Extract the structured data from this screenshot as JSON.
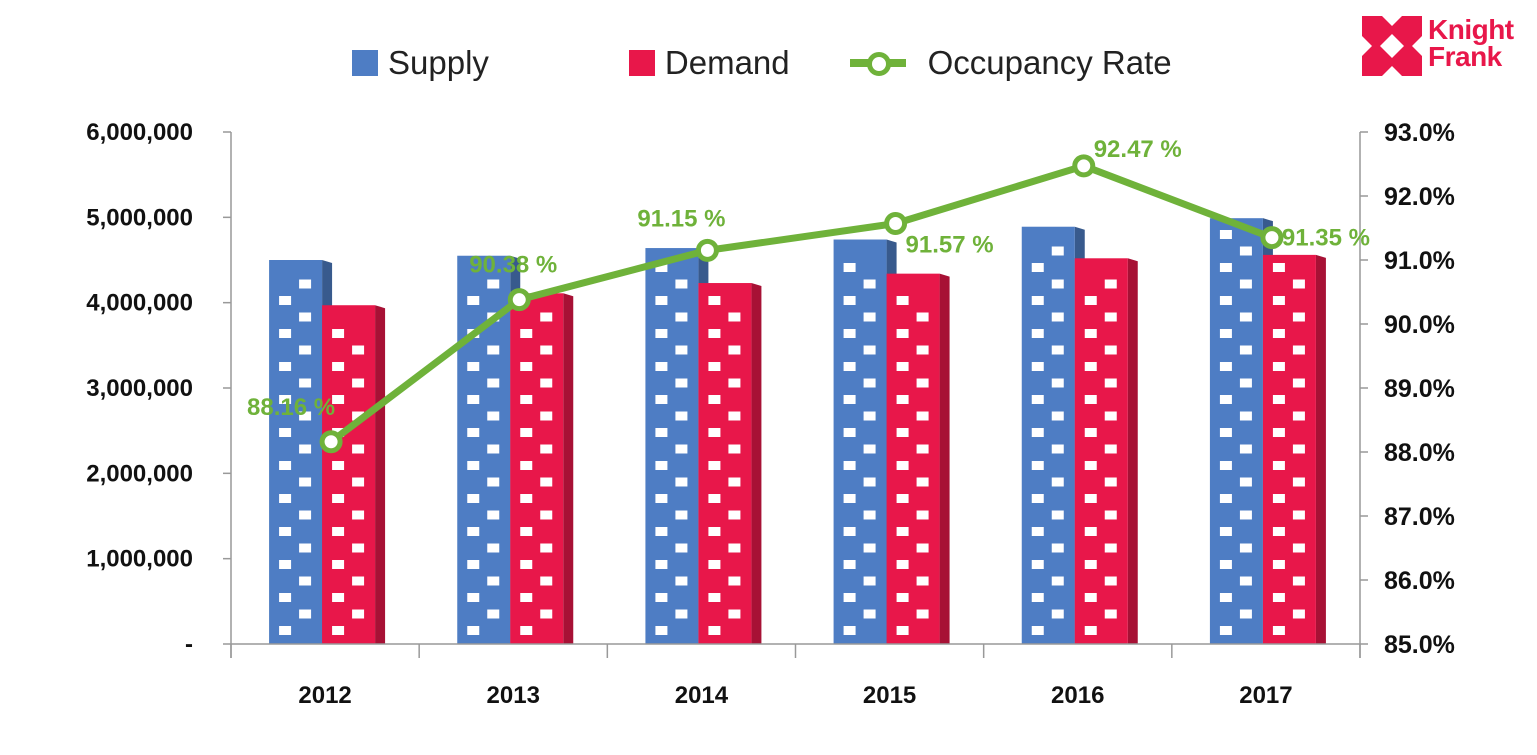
{
  "brand": {
    "line1": "Knight",
    "line2": "Frank",
    "color": "#e8174a"
  },
  "legend": {
    "supply": "Supply",
    "demand": "Demand",
    "occupancy": "Occupancy Rate"
  },
  "chart_data": {
    "type": "bar",
    "categories": [
      "2012",
      "2013",
      "2014",
      "2015",
      "2016",
      "2017"
    ],
    "series": [
      {
        "name": "Supply",
        "values": [
          4500000,
          4550000,
          4640000,
          4740000,
          4890000,
          4990000
        ],
        "color": "#4e7dc4",
        "axis": "left"
      },
      {
        "name": "Demand",
        "values": [
          3970000,
          4110000,
          4230000,
          4340000,
          4520000,
          4560000
        ],
        "color": "#e8174a",
        "axis": "left"
      },
      {
        "name": "Occupancy Rate",
        "type": "line",
        "values": [
          88.16,
          90.38,
          91.15,
          91.57,
          92.47,
          91.35
        ],
        "labels": [
          "88.16 %",
          "90.38 %",
          "91.15 %",
          "91.57 %",
          "92.47 %",
          "91.35 %"
        ],
        "color": "#6fb23a",
        "axis": "right"
      }
    ],
    "y_left": {
      "ylim": [
        0,
        6000000
      ],
      "ticks": [
        0,
        1000000,
        2000000,
        3000000,
        4000000,
        5000000,
        6000000
      ],
      "tick_labels": [
        "-",
        "1,000,000",
        "2,000,000",
        "3,000,000",
        "4,000,000",
        "5,000,000",
        "6,000,000"
      ]
    },
    "y_right": {
      "ylim": [
        85,
        93
      ],
      "ticks": [
        85,
        86,
        87,
        88,
        89,
        90,
        91,
        92,
        93
      ],
      "tick_labels": [
        "85.0%",
        "86.0%",
        "87.0%",
        "88.0%",
        "89.0%",
        "90.0%",
        "91.0%",
        "92.0%",
        "93.0%"
      ]
    },
    "title": "",
    "xlabel": "",
    "ylabel": "",
    "grid": false,
    "legend_position": "top"
  }
}
